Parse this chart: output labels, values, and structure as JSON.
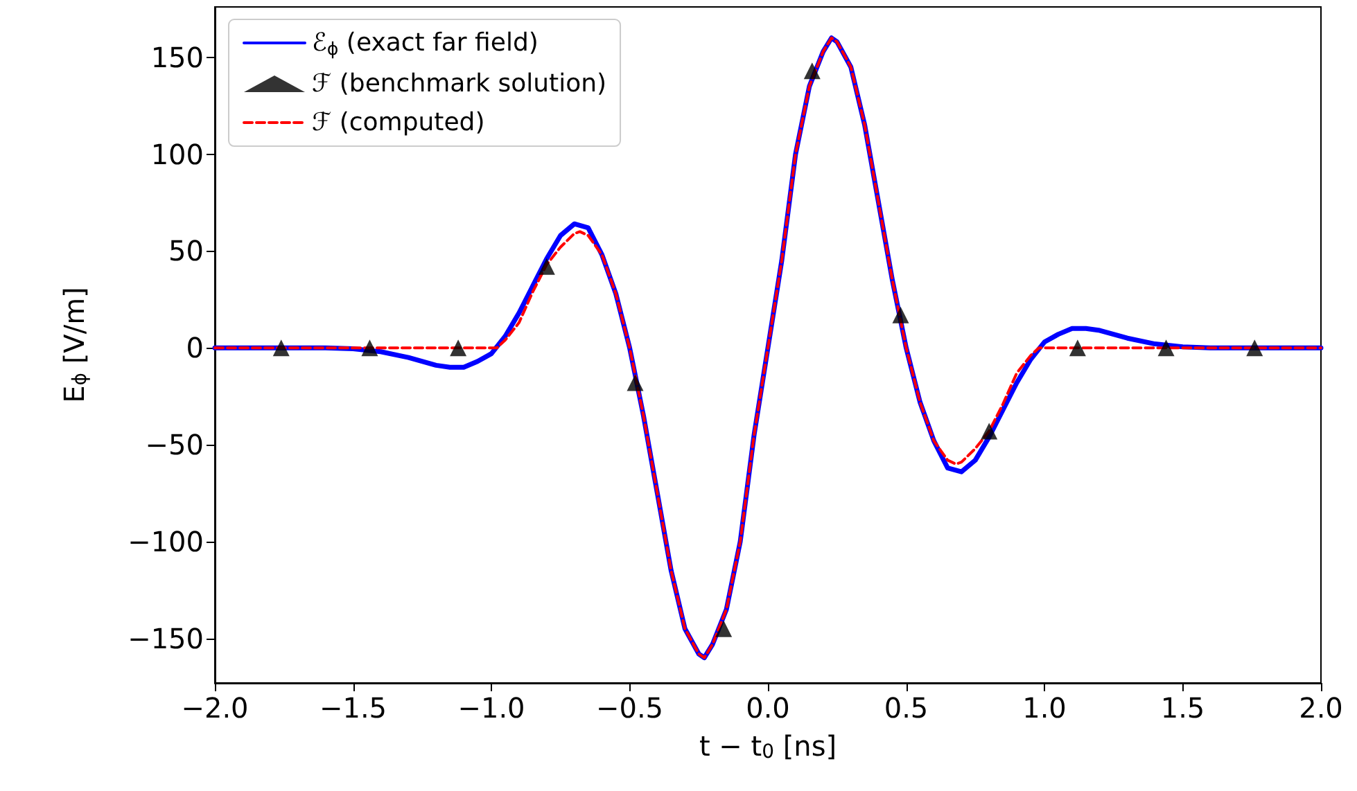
{
  "chart_data": {
    "type": "line",
    "xlabel": "t − t$_{0}$ [ns]",
    "ylabel": "E$_{ϕ}$ [V/m]",
    "xlim": [
      -2.0,
      2.0
    ],
    "xticks": [
      {
        "value": -2,
        "label": "−2.0"
      },
      {
        "value": -1.5,
        "label": "−1.5"
      },
      {
        "value": -1,
        "label": "−1.0"
      },
      {
        "value": -0.5,
        "label": "−0.5"
      },
      {
        "value": 0,
        "label": "0.0"
      },
      {
        "value": 0.5,
        "label": "0.5"
      },
      {
        "value": 1,
        "label": "1.0"
      },
      {
        "value": 1.5,
        "label": "1.5"
      },
      {
        "value": 2,
        "label": "2.0"
      }
    ],
    "ylim": [
      -173,
      176
    ],
    "yticks": [
      {
        "value": -150,
        "label": "−150"
      },
      {
        "value": -100,
        "label": "−100"
      },
      {
        "value": -50,
        "label": "−50"
      },
      0,
      50,
      100,
      150
    ],
    "grid": false,
    "legend": "top left",
    "series": [
      {
        "name": "ℰ$_{ϕ}$ (exact far field)",
        "color": "#0000ff",
        "line_style": "solid",
        "marker": "none",
        "x": [
          -2.0,
          -1.6,
          -1.5,
          -1.4,
          -1.3,
          -1.2,
          -1.15,
          -1.1,
          -1.05,
          -1.0,
          -0.95,
          -0.9,
          -0.85,
          -0.8,
          -0.75,
          -0.7,
          -0.65,
          -0.6,
          -0.55,
          -0.5,
          -0.45,
          -0.4,
          -0.35,
          -0.3,
          -0.25,
          -0.23,
          -0.2,
          -0.15,
          -0.1,
          -0.05,
          0.0,
          0.05,
          0.1,
          0.15,
          0.2,
          0.23,
          0.25,
          0.3,
          0.35,
          0.4,
          0.45,
          0.5,
          0.55,
          0.6,
          0.65,
          0.7,
          0.75,
          0.8,
          0.85,
          0.9,
          0.95,
          1.0,
          1.05,
          1.1,
          1.15,
          1.2,
          1.3,
          1.4,
          1.5,
          1.6,
          2.0
        ],
        "values": [
          0,
          0,
          -0.5,
          -2,
          -5,
          -9,
          -10,
          -10,
          -7,
          -3,
          6,
          18,
          32,
          46,
          58,
          64,
          62,
          48,
          28,
          0,
          -35,
          -75,
          -115,
          -145,
          -158,
          -160,
          -153,
          -135,
          -100,
          -45,
          0,
          45,
          100,
          135,
          153,
          160,
          158,
          145,
          115,
          75,
          35,
          0,
          -28,
          -48,
          -62,
          -64,
          -58,
          -46,
          -32,
          -18,
          -6,
          3,
          7,
          10,
          10,
          9,
          5,
          2,
          0.5,
          0,
          0
        ]
      },
      {
        "name": "ℱ (benchmark solution)",
        "type": "scatter",
        "color": "#000000",
        "marker": "triangle",
        "x": [
          -1.76,
          -1.44,
          -1.12,
          -0.8,
          -0.48,
          -0.16,
          0.16,
          0.48,
          0.8,
          1.12,
          1.44,
          1.76
        ],
        "values": [
          0,
          0,
          0,
          42,
          -18,
          -145,
          143,
          17,
          -43,
          0,
          0,
          0
        ]
      },
      {
        "name": "ℱ (computed)",
        "color": "#ff0000",
        "line_style": "dashed",
        "marker": "none",
        "x": [
          -2.0,
          -0.98,
          -0.95,
          -0.9,
          -0.85,
          -0.8,
          -0.75,
          -0.7,
          -0.68,
          -0.65,
          -0.6,
          -0.55,
          -0.5,
          -0.45,
          -0.4,
          -0.35,
          -0.3,
          -0.25,
          -0.23,
          -0.2,
          -0.15,
          -0.1,
          -0.05,
          0.0,
          0.05,
          0.1,
          0.15,
          0.2,
          0.23,
          0.25,
          0.3,
          0.35,
          0.4,
          0.45,
          0.5,
          0.55,
          0.6,
          0.65,
          0.68,
          0.7,
          0.75,
          0.8,
          0.85,
          0.9,
          0.95,
          0.98,
          2.0
        ],
        "values": [
          0,
          0,
          4,
          13,
          29,
          43,
          52,
          59,
          60,
          58,
          48,
          28,
          0,
          -35,
          -75,
          -115,
          -145,
          -158,
          -160,
          -153,
          -135,
          -100,
          -45,
          0,
          45,
          100,
          135,
          153,
          160,
          158,
          145,
          115,
          75,
          35,
          0,
          -28,
          -48,
          -58,
          -60,
          -59,
          -52,
          -43,
          -29,
          -13,
          -4,
          0,
          0
        ]
      }
    ]
  }
}
